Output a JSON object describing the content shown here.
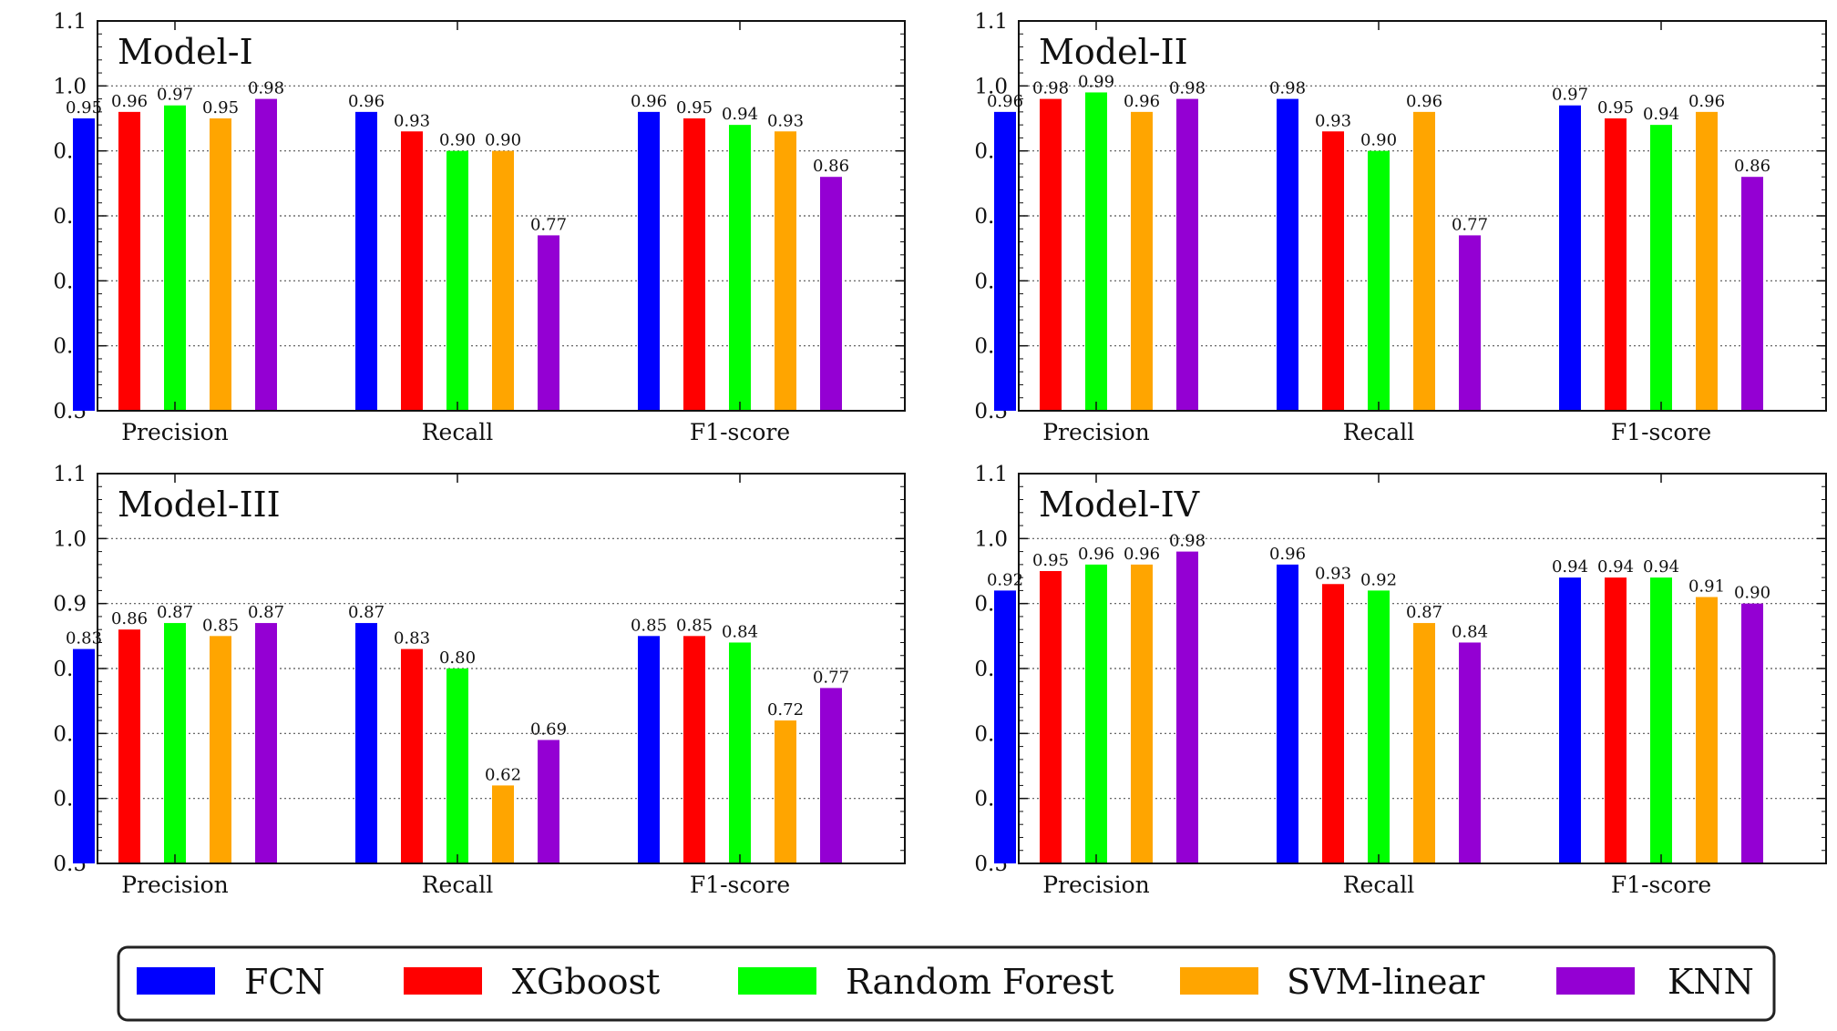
{
  "chart_data": [
    {
      "type": "bar",
      "title": "Model-I",
      "categories": [
        "Precision",
        "Recall",
        "F1-score"
      ],
      "ylim": [
        0.5,
        1.1
      ],
      "yticks": [
        "0.5",
        "0.6",
        "0.7",
        "0.8",
        "0.9",
        "1.0",
        "1.1"
      ],
      "series": [
        {
          "name": "FCN",
          "values": [
            0.95,
            0.96,
            0.96
          ],
          "labels": [
            "0.95",
            "0.96",
            "0.96"
          ]
        },
        {
          "name": "XGboost",
          "values": [
            0.96,
            0.93,
            0.95
          ],
          "labels": [
            "0.96",
            "0.93",
            "0.95"
          ]
        },
        {
          "name": "Random Forest",
          "values": [
            0.97,
            0.9,
            0.94
          ],
          "labels": [
            "0.97",
            "0.90",
            "0.94"
          ]
        },
        {
          "name": "SVM-linear",
          "values": [
            0.95,
            0.9,
            0.93
          ],
          "labels": [
            "0.95",
            "0.90",
            "0.93"
          ]
        },
        {
          "name": "KNN",
          "values": [
            0.98,
            0.77,
            0.86
          ],
          "labels": [
            "0.98",
            "0.77",
            "0.86"
          ]
        }
      ]
    },
    {
      "type": "bar",
      "title": "Model-II",
      "categories": [
        "Precision",
        "Recall",
        "F1-score"
      ],
      "ylim": [
        0.5,
        1.1
      ],
      "yticks": [
        "0.5",
        "0.6",
        "0.7",
        "0.8",
        "0.9",
        "1.0",
        "1.1"
      ],
      "series": [
        {
          "name": "FCN",
          "values": [
            0.96,
            0.98,
            0.97
          ],
          "labels": [
            "0.96",
            "0.98",
            "0.97"
          ]
        },
        {
          "name": "XGboost",
          "values": [
            0.98,
            0.93,
            0.95
          ],
          "labels": [
            "0.98",
            "0.93",
            "0.95"
          ]
        },
        {
          "name": "Random Forest",
          "values": [
            0.99,
            0.9,
            0.94
          ],
          "labels": [
            "0.99",
            "0.90",
            "0.94"
          ]
        },
        {
          "name": "SVM-linear",
          "values": [
            0.96,
            0.96,
            0.96
          ],
          "labels": [
            "0.96",
            "0.96",
            "0.96"
          ]
        },
        {
          "name": "KNN",
          "values": [
            0.98,
            0.77,
            0.86
          ],
          "labels": [
            "0.98",
            "0.77",
            "0.86"
          ]
        }
      ]
    },
    {
      "type": "bar",
      "title": "Model-III",
      "categories": [
        "Precision",
        "Recall",
        "F1-score"
      ],
      "ylim": [
        0.5,
        1.1
      ],
      "yticks": [
        "0.5",
        "0.6",
        "0.7",
        "0.8",
        "0.9",
        "1.0",
        "1.1"
      ],
      "series": [
        {
          "name": "FCN",
          "values": [
            0.83,
            0.87,
            0.85
          ],
          "labels": [
            "0.83",
            "0.87",
            "0.85"
          ]
        },
        {
          "name": "XGboost",
          "values": [
            0.86,
            0.83,
            0.85
          ],
          "labels": [
            "0.86",
            "0.83",
            "0.85"
          ]
        },
        {
          "name": "Random Forest",
          "values": [
            0.87,
            0.8,
            0.84
          ],
          "labels": [
            "0.87",
            "0.80",
            "0.84"
          ]
        },
        {
          "name": "SVM-linear",
          "values": [
            0.85,
            0.62,
            0.72
          ],
          "labels": [
            "0.85",
            "0.62",
            "0.72"
          ]
        },
        {
          "name": "KNN",
          "values": [
            0.87,
            0.69,
            0.77
          ],
          "labels": [
            "0.87",
            "0.69",
            "0.77"
          ]
        }
      ]
    },
    {
      "type": "bar",
      "title": "Model-IV",
      "categories": [
        "Precision",
        "Recall",
        "F1-score"
      ],
      "ylim": [
        0.5,
        1.1
      ],
      "yticks": [
        "0.5",
        "0.6",
        "0.7",
        "0.8",
        "0.9",
        "1.0",
        "1.1"
      ],
      "series": [
        {
          "name": "FCN",
          "values": [
            0.92,
            0.96,
            0.94
          ],
          "labels": [
            "0.92",
            "0.96",
            "0.94"
          ]
        },
        {
          "name": "XGboost",
          "values": [
            0.95,
            0.93,
            0.94
          ],
          "labels": [
            "0.95",
            "0.93",
            "0.94"
          ]
        },
        {
          "name": "Random Forest",
          "values": [
            0.96,
            0.92,
            0.94
          ],
          "labels": [
            "0.96",
            "0.92",
            "0.94"
          ]
        },
        {
          "name": "SVM-linear",
          "values": [
            0.96,
            0.87,
            0.91
          ],
          "labels": [
            "0.96",
            "0.87",
            "0.91"
          ]
        },
        {
          "name": "KNN",
          "values": [
            0.98,
            0.84,
            0.9
          ],
          "labels": [
            "0.98",
            "0.84",
            "0.90"
          ]
        }
      ]
    }
  ],
  "legend": {
    "placement": "bottom-center",
    "entries": [
      {
        "label": "FCN",
        "color": "#0000ff"
      },
      {
        "label": "XGboost",
        "color": "#ff0000"
      },
      {
        "label": "Random Forest",
        "color": "#00ff00"
      },
      {
        "label": "SVM-linear",
        "color": "#ffa500"
      },
      {
        "label": "KNN",
        "color": "#9400d3"
      }
    ]
  }
}
